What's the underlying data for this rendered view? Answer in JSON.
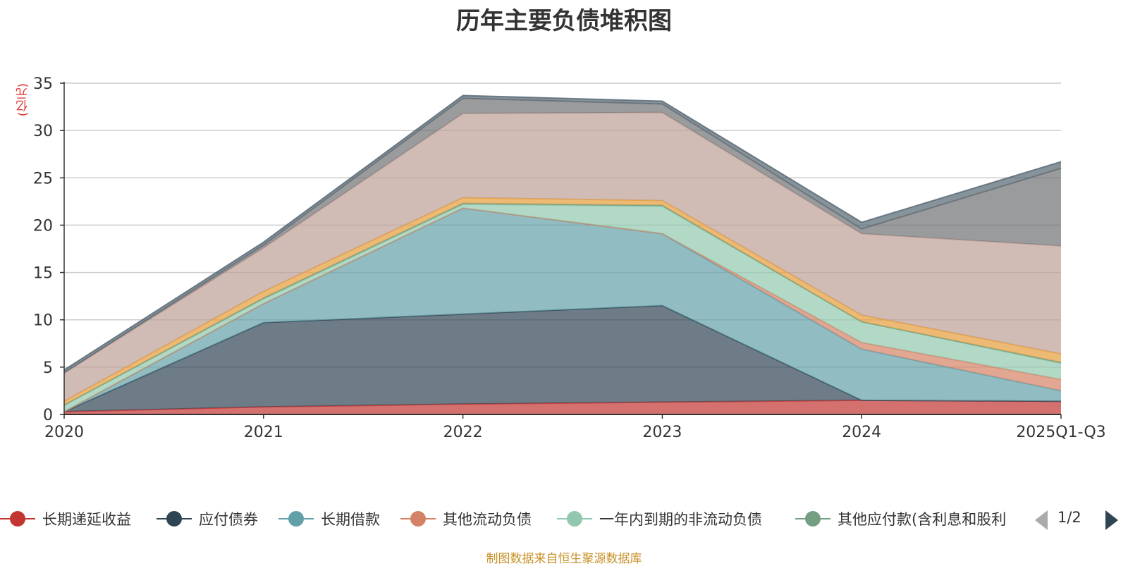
{
  "chart_data": {
    "type": "area",
    "title": "历年主要负债堆积图",
    "unit_label": "(亿元)",
    "categories": [
      "2020",
      "2021",
      "2022",
      "2023",
      "2024",
      "2025Q1-Q3"
    ],
    "y_ticks": [
      "0",
      "5",
      "10",
      "15",
      "20",
      "25",
      "30",
      "35"
    ],
    "ylim": [
      0,
      35
    ],
    "stacked": true,
    "grid": true,
    "series": [
      {
        "name": "长期递延收益",
        "color": "#c23531",
        "values": [
          0.3,
          0.8,
          1.1,
          1.3,
          1.5,
          1.4
        ]
      },
      {
        "name": "应付债券",
        "color": "#2f4554",
        "values": [
          0.0,
          8.9,
          9.5,
          10.2,
          0.0,
          0.0
        ]
      },
      {
        "name": "长期借款",
        "color": "#61a0a8",
        "values": [
          0.0,
          2.0,
          11.2,
          7.6,
          5.4,
          1.1
        ]
      },
      {
        "name": "其他流动负债",
        "color": "#d48265",
        "values": [
          0.0,
          0.0,
          0.0,
          0.0,
          0.7,
          1.2
        ]
      },
      {
        "name": "一年内到期的非流动负债",
        "color": "#91c7ae",
        "values": [
          0.7,
          0.5,
          0.4,
          2.9,
          2.2,
          1.7
        ]
      },
      {
        "name": "其他应付款(含利息和股利",
        "color": "#749f83",
        "values": [
          0.0,
          0.1,
          0.1,
          0.1,
          0.0,
          0.1
        ]
      },
      {
        "name": "",
        "color": "#e69d3a",
        "values": [
          0.4,
          0.7,
          0.6,
          0.5,
          0.7,
          0.9
        ]
      },
      {
        "name": "",
        "color": "#bd9e95",
        "values": [
          3.0,
          4.6,
          8.9,
          9.3,
          8.6,
          11.4
        ]
      },
      {
        "name": "",
        "color": "#6e7074",
        "values": [
          0.0,
          0.3,
          1.6,
          0.9,
          0.5,
          8.2
        ]
      },
      {
        "name": "",
        "color": "#546570",
        "values": [
          0.3,
          0.3,
          0.3,
          0.3,
          0.7,
          0.7
        ]
      }
    ]
  },
  "legend": {
    "page_indicator": "1/2"
  },
  "source_note": "制图数据来自恒生聚源数据库"
}
